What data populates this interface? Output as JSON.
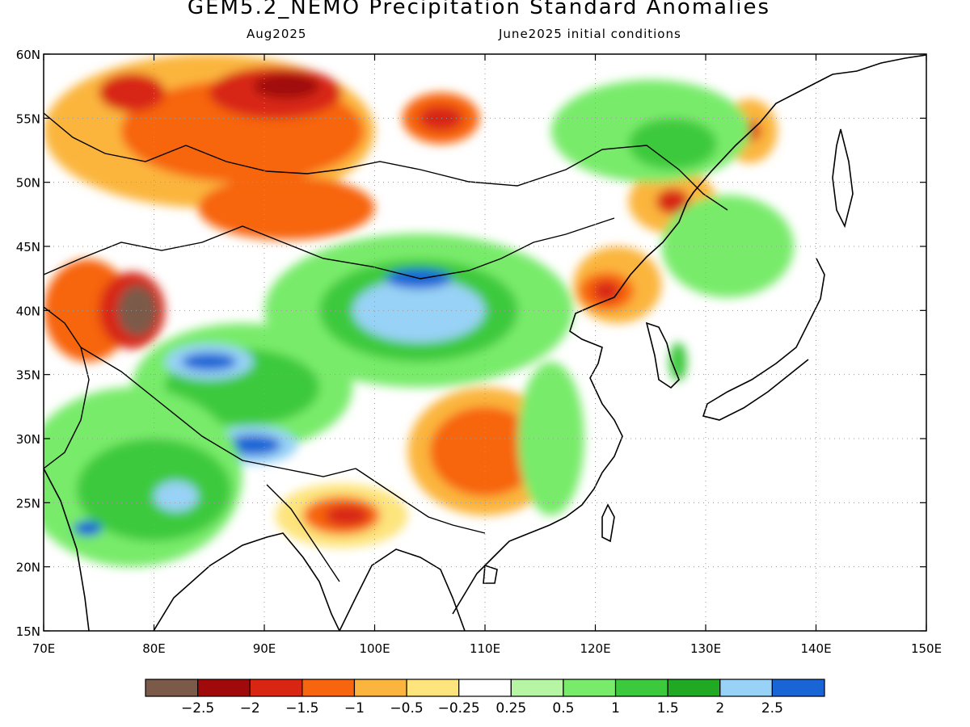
{
  "title": "GEM5.2_NEMO Precipitation Standard Anomalies",
  "subtitle_left": "Aug2025",
  "subtitle_right": "June2025 initial conditions",
  "map": {
    "lon_range": [
      70,
      150
    ],
    "lat_range": [
      15,
      60
    ],
    "lat_labels": [
      "60N",
      "55N",
      "50N",
      "45N",
      "40N",
      "35N",
      "30N",
      "25N",
      "20N",
      "15N"
    ],
    "lon_labels": [
      "70E",
      "80E",
      "90E",
      "100E",
      "110E",
      "120E",
      "130E",
      "140E",
      "150E"
    ],
    "grid": "dotted"
  },
  "colorbar": {
    "colors": [
      "#7b5a4a",
      "#a10a0a",
      "#d82612",
      "#f7650f",
      "#fbb53e",
      "#fde47c",
      "#ffffff",
      "#b5f5a3",
      "#78eb6b",
      "#3cc93d",
      "#20aa24",
      "#98d2f6",
      "#1965d6"
    ],
    "labels": [
      "-2.5",
      "-2",
      "-1.5",
      "-1",
      "-0.5",
      "-0.25",
      "0.25",
      "0.5",
      "1",
      "1.5",
      "2",
      "2.5"
    ]
  },
  "anomaly_regions": [
    {
      "color": "#fbb53e",
      "lon": 85,
      "lat": 54,
      "rx": 15,
      "ry": 6
    },
    {
      "color": "#f7650f",
      "lon": 88,
      "lat": 54,
      "rx": 11,
      "ry": 4
    },
    {
      "color": "#d82612",
      "lon": 91,
      "lat": 57,
      "rx": 6,
      "ry": 2
    },
    {
      "color": "#a10a0a",
      "lon": 92,
      "lat": 57.5,
      "rx": 3,
      "ry": 1
    },
    {
      "color": "#d82612",
      "lon": 78,
      "lat": 57,
      "rx": 3,
      "ry": 1.5
    },
    {
      "color": "#f7650f",
      "lon": 92,
      "lat": 48,
      "rx": 8,
      "ry": 2.5
    },
    {
      "color": "#f7650f",
      "lon": 74,
      "lat": 40,
      "rx": 4,
      "ry": 4
    },
    {
      "color": "#d82612",
      "lon": 78,
      "lat": 40,
      "rx": 3,
      "ry": 3
    },
    {
      "color": "#7b5a4a",
      "lon": 78.5,
      "lat": 40,
      "rx": 1.8,
      "ry": 2
    },
    {
      "color": "#f7650f",
      "lon": 106,
      "lat": 55,
      "rx": 3.5,
      "ry": 2
    },
    {
      "color": "#d82612",
      "lon": 106,
      "lat": 55,
      "rx": 2,
      "ry": 1
    },
    {
      "color": "#78eb6b",
      "lon": 104,
      "lat": 40,
      "rx": 14,
      "ry": 6
    },
    {
      "color": "#3cc93d",
      "lon": 104,
      "lat": 40,
      "rx": 9,
      "ry": 4
    },
    {
      "color": "#98d2f6",
      "lon": 104,
      "lat": 40,
      "rx": 6,
      "ry": 2.5
    },
    {
      "color": "#1965d6",
      "lon": 104,
      "lat": 42.5,
      "rx": 3,
      "ry": 0.8
    },
    {
      "color": "#78eb6b",
      "lon": 88,
      "lat": 34,
      "rx": 10,
      "ry": 5
    },
    {
      "color": "#3cc93d",
      "lon": 88,
      "lat": 34,
      "rx": 7,
      "ry": 3
    },
    {
      "color": "#98d2f6",
      "lon": 85,
      "lat": 36,
      "rx": 4,
      "ry": 1.4
    },
    {
      "color": "#1965d6",
      "lon": 85,
      "lat": 36,
      "rx": 2.5,
      "ry": 0.7
    },
    {
      "color": "#98d2f6",
      "lon": 89,
      "lat": 29.5,
      "rx": 4,
      "ry": 1.5
    },
    {
      "color": "#1965d6",
      "lon": 89,
      "lat": 29.5,
      "rx": 2.5,
      "ry": 0.8
    },
    {
      "color": "#78eb6b",
      "lon": 78,
      "lat": 27,
      "rx": 10,
      "ry": 7
    },
    {
      "color": "#3cc93d",
      "lon": 80,
      "lat": 26,
      "rx": 7,
      "ry": 4
    },
    {
      "color": "#98d2f6",
      "lon": 82,
      "lat": 25.5,
      "rx": 2,
      "ry": 1.2
    },
    {
      "color": "#1965d6",
      "lon": 74,
      "lat": 23,
      "rx": 1.3,
      "ry": 0.6
    },
    {
      "color": "#fbb53e",
      "lon": 110,
      "lat": 29,
      "rx": 7,
      "ry": 5
    },
    {
      "color": "#f7650f",
      "lon": 110,
      "lat": 29,
      "rx": 5,
      "ry": 3.5
    },
    {
      "color": "#fde47c",
      "lon": 97,
      "lat": 24,
      "rx": 6,
      "ry": 2.5
    },
    {
      "color": "#f7650f",
      "lon": 97,
      "lat": 24,
      "rx": 3.5,
      "ry": 1.5
    },
    {
      "color": "#d82612",
      "lon": 97.5,
      "lat": 24,
      "rx": 2,
      "ry": 0.8
    },
    {
      "color": "#fbb53e",
      "lon": 122,
      "lat": 42,
      "rx": 4,
      "ry": 3
    },
    {
      "color": "#f7650f",
      "lon": 121,
      "lat": 41.5,
      "rx": 2.5,
      "ry": 1.5
    },
    {
      "color": "#d82612",
      "lon": 121,
      "lat": 41.5,
      "rx": 1.2,
      "ry": 0.8
    },
    {
      "color": "#fbb53e",
      "lon": 127,
      "lat": 48.5,
      "rx": 4,
      "ry": 2.5
    },
    {
      "color": "#d82612",
      "lon": 127,
      "lat": 48.5,
      "rx": 1.5,
      "ry": 1
    },
    {
      "color": "#fbb53e",
      "lon": 134,
      "lat": 54,
      "rx": 2.5,
      "ry": 2.5
    },
    {
      "color": "#d82612",
      "lon": 134,
      "lat": 54,
      "rx": 1,
      "ry": 0.8
    },
    {
      "color": "#78eb6b",
      "lon": 125,
      "lat": 54,
      "rx": 9,
      "ry": 4
    },
    {
      "color": "#3cc93d",
      "lon": 127,
      "lat": 53,
      "rx": 4,
      "ry": 2
    },
    {
      "color": "#78eb6b",
      "lon": 116,
      "lat": 30,
      "rx": 3,
      "ry": 6
    },
    {
      "color": "#3cc93d",
      "lon": 127.5,
      "lat": 36,
      "rx": 0.8,
      "ry": 1.5
    },
    {
      "color": "#78eb6b",
      "lon": 132,
      "lat": 45,
      "rx": 6,
      "ry": 4
    }
  ]
}
